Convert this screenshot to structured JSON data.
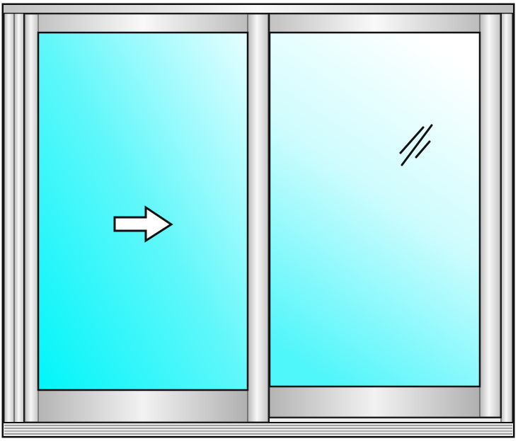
{
  "window": {
    "type": "horizontal-sliding-window",
    "panels": [
      {
        "id": "left-sash",
        "role": "operable",
        "indicator": "arrow-right-icon",
        "slide_direction": "right"
      },
      {
        "id": "right-sash",
        "role": "fixed",
        "indicator": "glass-reflection-icon"
      }
    ],
    "colors": {
      "frame_light": "#f4f4f4",
      "frame_mid": "#d2d2d2",
      "frame_dark": "#a8a8a8",
      "outline": "#111111",
      "glass_deep": "#00f4f8",
      "glass_light": "#ffffff",
      "arrow_fill": "#ffffff"
    }
  }
}
